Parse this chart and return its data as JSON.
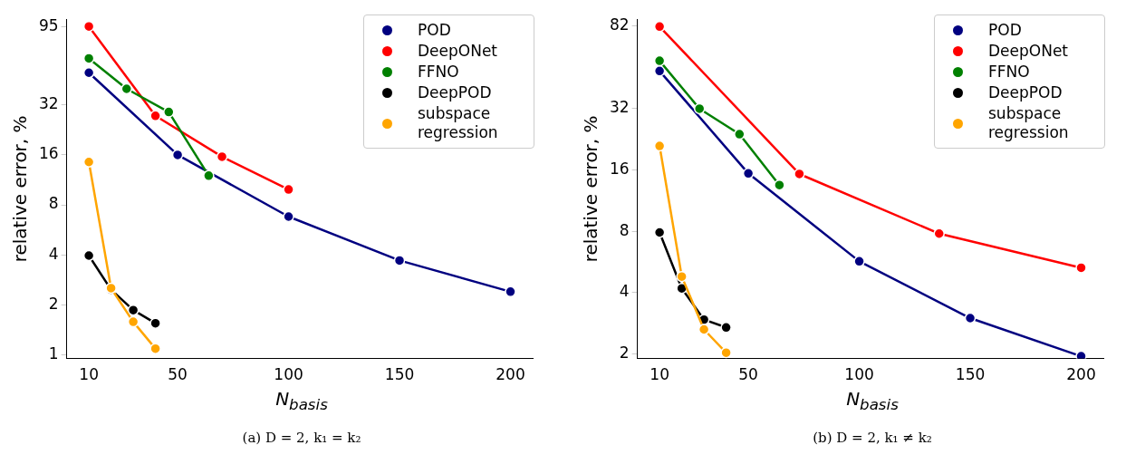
{
  "chart_data": [
    {
      "type": "line",
      "ylabel": "relative error, %",
      "xlabel": "N$_{basis}$",
      "annotations": [
        "(a) D = 2, k₁ = k₂"
      ],
      "log": "y",
      "legend": "top right",
      "marker": "circle",
      "line_style": "solid",
      "grid": false,
      "xlim": [
        0,
        210
      ],
      "xticks": [
        10,
        50,
        100,
        150,
        200
      ],
      "ylim": [
        0.95,
        105
      ],
      "yticks": [
        1,
        2,
        4,
        8,
        16,
        32,
        95
      ],
      "series": [
        {
          "name": "POD",
          "color": "#000080",
          "x": [
            10,
            50,
            100,
            150,
            200
          ],
          "values": [
            50,
            16,
            6.8,
            3.7,
            2.4
          ]
        },
        {
          "name": "DeepONet",
          "color": "#ff0000",
          "x": [
            10,
            40,
            70,
            100
          ],
          "values": [
            95,
            27.5,
            15.6,
            9.9
          ]
        },
        {
          "name": "FFNO",
          "color": "#008000",
          "x": [
            10,
            27,
            46,
            64
          ],
          "values": [
            61,
            40,
            29,
            12
          ]
        },
        {
          "name": "DeepPOD",
          "color": "#000000",
          "x": [
            10,
            20,
            30,
            40
          ],
          "values": [
            3.96,
            2.47,
            1.86,
            1.55
          ]
        },
        {
          "name": "subspace regression",
          "color": "#ffa500",
          "x": [
            10,
            20,
            30,
            40
          ],
          "values": [
            14.5,
            2.52,
            1.58,
            1.09
          ]
        }
      ]
    },
    {
      "type": "line",
      "ylabel": "relative error, %",
      "xlabel": "N$_{basis}$",
      "annotations": [
        "(b) D = 2, k₁ ≠ k₂"
      ],
      "log": "y",
      "legend": "top right",
      "marker": "circle",
      "line_style": "solid",
      "grid": false,
      "xlim": [
        0,
        210
      ],
      "xticks": [
        10,
        50,
        100,
        150,
        200
      ],
      "ylim": [
        1.9,
        88
      ],
      "yticks": [
        2,
        4,
        8,
        16,
        32,
        82
      ],
      "series": [
        {
          "name": "POD",
          "color": "#000080",
          "x": [
            10,
            50,
            100,
            150,
            200
          ],
          "values": [
            49,
            15.4,
            5.7,
            3.0,
            1.95
          ]
        },
        {
          "name": "DeepONet",
          "color": "#ff0000",
          "x": [
            10,
            73,
            136,
            200
          ],
          "values": [
            81,
            15.3,
            7.8,
            5.3
          ]
        },
        {
          "name": "FFNO",
          "color": "#008000",
          "x": [
            10,
            28,
            46,
            64
          ],
          "values": [
            55,
            32,
            24,
            13.5
          ]
        },
        {
          "name": "DeepPOD",
          "color": "#000000",
          "x": [
            10,
            20,
            30,
            40
          ],
          "values": [
            7.9,
            4.2,
            2.95,
            2.7
          ]
        },
        {
          "name": "subspace regression",
          "color": "#ffa500",
          "x": [
            10,
            20,
            30,
            40
          ],
          "values": [
            21,
            4.8,
            2.64,
            2.03
          ]
        }
      ]
    }
  ]
}
